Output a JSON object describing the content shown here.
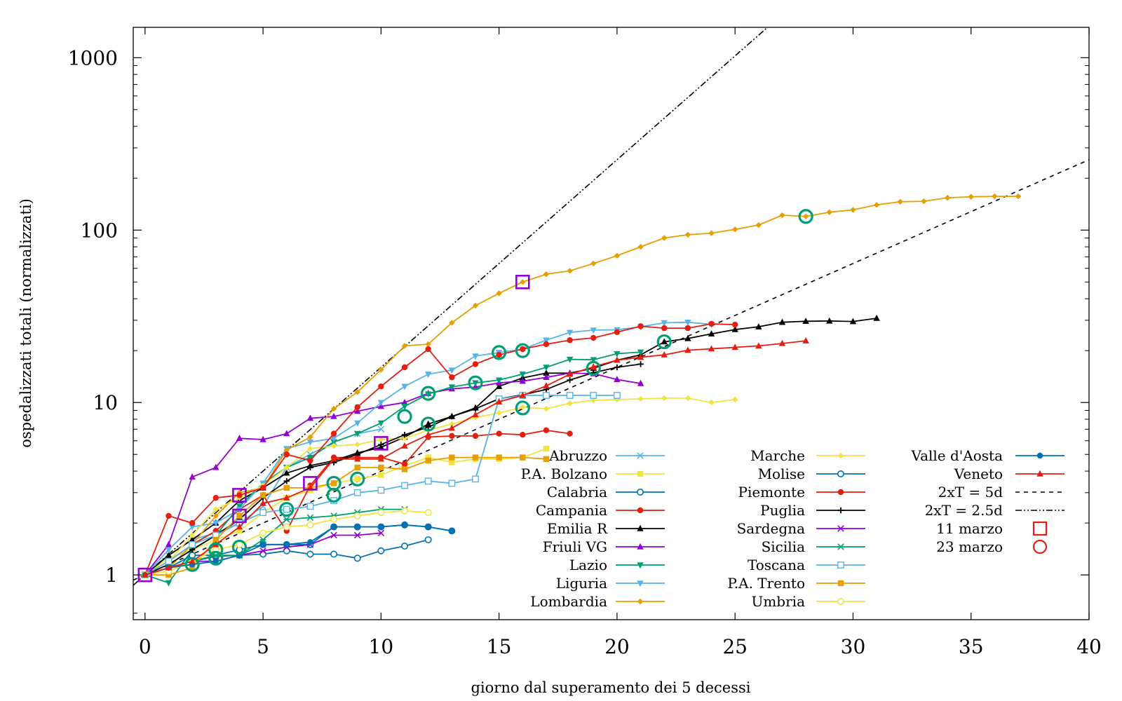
{
  "chart_data": {
    "type": "line",
    "title": "",
    "xlabel": "giorno dal superamento dei 5 decessi",
    "ylabel": "ospedalizzati totali (normalizzati)",
    "xlim": [
      -0.5,
      40
    ],
    "ylim": [
      0.55,
      1500
    ],
    "yscale": "log",
    "x_ticks": [
      "0",
      "5",
      "10",
      "15",
      "20",
      "25",
      "30",
      "35",
      "40"
    ],
    "y_ticks": [
      "1",
      "10",
      "100",
      "1000"
    ],
    "grid": false,
    "legend_position": "bottom-right",
    "series": [
      {
        "name": "Abruzzo",
        "color": "#56b4e9",
        "marker": "x",
        "x": [
          0,
          1,
          2,
          3,
          4,
          5,
          6,
          7,
          8,
          9,
          10
        ],
        "y": [
          1,
          1.3,
          1.6,
          1.75,
          2.0,
          2.5,
          4.2,
          5.0,
          5.9,
          6.6,
          7.0
        ]
      },
      {
        "name": "P.A. Bolzano",
        "color": "#f0e442",
        "marker": "square",
        "x": [
          0,
          1,
          2,
          3,
          4,
          5,
          6,
          7,
          8,
          9,
          10,
          11,
          12,
          13,
          14,
          15,
          16,
          17
        ],
        "y": [
          1,
          1.25,
          1.4,
          1.6,
          1.8,
          2.3,
          2.8,
          3.1,
          3.4,
          3.6,
          3.8,
          4.3,
          4.8,
          4.5,
          4.7,
          4.7,
          4.8,
          5.4
        ]
      },
      {
        "name": "Calabria",
        "color": "#0072b2",
        "marker": "circle-open",
        "x": [
          0,
          1,
          2,
          3,
          4,
          5,
          6,
          7,
          8,
          9,
          10,
          11,
          12
        ],
        "y": [
          1,
          1.1,
          1.2,
          1.28,
          1.3,
          1.32,
          1.38,
          1.32,
          1.32,
          1.25,
          1.38,
          1.47,
          1.6
        ]
      },
      {
        "name": "Campania",
        "color": "#e51e10",
        "marker": "circle",
        "x": [
          0,
          1,
          2,
          3,
          4,
          5,
          6,
          7,
          8,
          9,
          10,
          11,
          12,
          13,
          14,
          15,
          16,
          17,
          18
        ],
        "y": [
          1,
          1.2,
          1.5,
          1.8,
          2.4,
          2.9,
          1.8,
          3.3,
          4.8,
          4.8,
          4.8,
          4.4,
          6.3,
          6.4,
          6.4,
          6.6,
          6.5,
          6.9,
          6.6
        ]
      },
      {
        "name": "Emilia R",
        "color": "#000000",
        "marker": "triangle",
        "x": [
          0,
          1,
          2,
          3,
          4,
          5,
          6,
          7,
          8,
          9,
          10,
          11,
          12,
          13,
          14,
          15,
          16,
          17,
          18,
          19,
          20,
          21,
          22,
          23,
          24,
          25,
          26,
          27,
          28,
          29,
          30,
          31
        ],
        "y": [
          1,
          1.3,
          1.6,
          2.0,
          2.7,
          3.2,
          3.9,
          4.3,
          4.6,
          5.1,
          5.5,
          6.3,
          7.5,
          8.3,
          9.3,
          12.4,
          13.9,
          14.8,
          14.8,
          15.8,
          17.6,
          18.9,
          22.5,
          23.5,
          25,
          26.5,
          27.5,
          29.2,
          29.6,
          29.7,
          29.5,
          30.8
        ]
      },
      {
        "name": "Friuli VG",
        "color": "#9400d3",
        "marker": "triangle",
        "x": [
          0,
          1,
          2,
          3,
          4,
          5,
          6,
          7,
          8,
          9,
          10,
          11,
          12,
          13,
          14,
          15,
          16,
          17,
          18,
          19,
          20,
          21
        ],
        "y": [
          1,
          1.5,
          3.7,
          4.2,
          6.2,
          6.1,
          6.6,
          8.1,
          8.3,
          8.9,
          9.5,
          10,
          11.3,
          12,
          12.3,
          13,
          13.3,
          14,
          14.8,
          14.7,
          13.6,
          12.9
        ]
      },
      {
        "name": "Lazio",
        "color": "#009e73",
        "marker": "triangle-down",
        "x": [
          0,
          1,
          2,
          3,
          4,
          5,
          6,
          7,
          8,
          9,
          10,
          11,
          12,
          13,
          14,
          15,
          16,
          17,
          18,
          19,
          20,
          21
        ],
        "y": [
          1,
          0.9,
          1.4,
          1.7,
          2.5,
          3.4,
          4.2,
          4.8,
          5.9,
          6.6,
          7.6,
          9.5,
          11.2,
          12.3,
          13,
          13.5,
          14.6,
          16,
          17.8,
          17.7,
          19.2,
          19.6
        ]
      },
      {
        "name": "Liguria",
        "color": "#56b4e9",
        "marker": "triangle-down",
        "x": [
          0,
          1,
          2,
          3,
          4,
          5,
          6,
          7,
          8,
          9,
          10,
          11,
          12,
          13,
          14,
          15,
          16,
          17,
          18,
          19,
          20,
          21,
          22,
          23,
          24
        ],
        "y": [
          1,
          1.4,
          1.9,
          2.0,
          2.4,
          3.4,
          5.4,
          5.9,
          6.2,
          7.6,
          10,
          12.4,
          14.6,
          15.4,
          18.6,
          19.5,
          20.4,
          23,
          25.5,
          26.3,
          26.4,
          27.5,
          29,
          29.2,
          28.4
        ]
      },
      {
        "name": "Lombardia",
        "color": "#e69f00",
        "marker": "diamond",
        "x": [
          0,
          1,
          2,
          3,
          4,
          5,
          6,
          7,
          8,
          9,
          10,
          11,
          12,
          13,
          14,
          15,
          16,
          17,
          18,
          19,
          20,
          21,
          22,
          23,
          24,
          25,
          26,
          27,
          28,
          29,
          30,
          31,
          32,
          33,
          34,
          35,
          36,
          37
        ],
        "y": [
          1,
          1.1,
          1.5,
          2.2,
          3.0,
          3.2,
          5.3,
          6.3,
          9.2,
          11.5,
          15.5,
          21.3,
          21.8,
          29,
          36.5,
          43,
          50,
          55.5,
          58,
          64,
          71,
          80,
          90,
          94,
          96,
          101,
          107,
          122,
          120,
          127,
          131,
          140,
          146,
          147,
          154,
          156,
          157,
          157
        ]
      },
      {
        "name": "Marche",
        "color": "#f0e442",
        "marker": "diamond",
        "x": [
          0,
          1,
          2,
          3,
          4,
          5,
          6,
          7,
          8,
          9,
          10,
          11,
          12,
          13,
          14,
          15,
          16,
          17,
          18,
          19,
          20,
          21,
          22,
          23,
          24,
          25
        ],
        "y": [
          1,
          1.2,
          1.7,
          2.4,
          2.8,
          3.3,
          4.2,
          5.4,
          5.6,
          5.7,
          6.1,
          6.2,
          6.9,
          7.5,
          8.2,
          8.7,
          9.4,
          9.2,
          9.9,
          10.3,
          10.4,
          10.5,
          10.6,
          10.6,
          10,
          10.4
        ]
      },
      {
        "name": "Molise",
        "color": "#0072b2",
        "marker": "circle-open",
        "x": [
          0,
          1,
          2,
          3,
          4,
          5,
          6,
          7,
          8,
          9,
          10,
          11,
          12,
          13
        ],
        "y": [
          1,
          1.1,
          1.3,
          1.3,
          1.4,
          1.5,
          1.5,
          1.5,
          1.9,
          1.9,
          1.9,
          1.95,
          1.9,
          1.8
        ]
      },
      {
        "name": "Piemonte",
        "color": "#e51e10",
        "marker": "circle",
        "x": [
          0,
          1,
          2,
          3,
          4,
          5,
          6,
          7,
          8,
          9,
          10,
          11,
          12,
          13,
          14,
          15,
          16,
          17,
          18,
          19,
          20,
          21,
          22,
          23,
          24,
          25
        ],
        "y": [
          1,
          2.2,
          2.0,
          2.8,
          2.9,
          3.2,
          5.0,
          4.6,
          6.6,
          9.4,
          12.4,
          16,
          20.4,
          14,
          16.7,
          18.9,
          20.4,
          21.8,
          23,
          23.7,
          25.6,
          27.7,
          27,
          27,
          28.6,
          28.3
        ]
      },
      {
        "name": "Puglia",
        "color": "#000000",
        "marker": "plus",
        "x": [
          0,
          1,
          2,
          3,
          4,
          5,
          6,
          7,
          8,
          9,
          10,
          11,
          12,
          13,
          14,
          15,
          16,
          17,
          18,
          19,
          20,
          21
        ],
        "y": [
          1,
          1.15,
          1.4,
          1.7,
          2.1,
          2.8,
          3.5,
          4.2,
          4.5,
          5.0,
          5.7,
          6.5,
          7.2,
          8.3,
          9.2,
          10.5,
          11.1,
          11.9,
          13.5,
          14.9,
          16,
          16.7
        ]
      },
      {
        "name": "Sardegna",
        "color": "#9400d3",
        "marker": "x",
        "x": [
          0,
          1,
          2,
          3,
          4,
          5,
          6,
          7,
          8,
          9,
          10
        ],
        "y": [
          1,
          1.1,
          1.2,
          1.2,
          1.3,
          1.38,
          1.45,
          1.5,
          1.7,
          1.7,
          1.75
        ]
      },
      {
        "name": "Sicilia",
        "color": "#009e73",
        "marker": "star",
        "x": [
          0,
          1,
          2,
          3,
          4,
          5,
          6,
          7,
          8,
          9,
          10,
          11
        ],
        "y": [
          1,
          1.1,
          1.2,
          1.3,
          1.3,
          1.6,
          2.1,
          2.15,
          2.2,
          2.3,
          2.4,
          2.4
        ]
      },
      {
        "name": "Toscana",
        "color": "#56b4e9",
        "marker": "square-open",
        "x": [
          0,
          1,
          2,
          3,
          4,
          5,
          6,
          7,
          8,
          9,
          10,
          11,
          12,
          13,
          14,
          15,
          16,
          17,
          18,
          19,
          20
        ],
        "y": [
          1,
          1.2,
          1.5,
          1.7,
          2.0,
          2.3,
          2.4,
          2.5,
          2.7,
          3.0,
          3.1,
          3.3,
          3.5,
          3.4,
          3.6,
          10.5,
          11,
          11,
          11,
          11,
          11
        ]
      },
      {
        "name": "P.A. Trento",
        "color": "#e69f00",
        "marker": "square",
        "x": [
          0,
          1,
          2,
          3,
          4,
          5,
          6,
          7,
          8,
          9,
          10,
          11,
          12,
          13,
          14,
          15,
          16,
          17
        ],
        "y": [
          1,
          1.0,
          1.1,
          1.6,
          2.2,
          2.9,
          3.2,
          3.2,
          3.4,
          4.2,
          4.2,
          4.1,
          4.6,
          4.8,
          4.8,
          4.8,
          4.8,
          4.7
        ]
      },
      {
        "name": "Umbria",
        "color": "#f0e442",
        "marker": "circle-open",
        "x": [
          0,
          1,
          2,
          3,
          4,
          5,
          6,
          7,
          8,
          9,
          10,
          11,
          12
        ],
        "y": [
          1,
          1.05,
          1.2,
          1.4,
          1.5,
          1.75,
          1.9,
          1.95,
          2.1,
          2.2,
          2.3,
          2.35,
          2.3
        ]
      },
      {
        "name": "Valle d'Aosta",
        "color": "#0072b2",
        "marker": "circle",
        "x": [
          0,
          1,
          2,
          3,
          4,
          5,
          6,
          7,
          8,
          9,
          10,
          11,
          12,
          13
        ],
        "y": [
          1,
          1.1,
          1.15,
          1.2,
          1.3,
          1.5,
          1.5,
          1.55,
          1.9,
          1.9,
          1.9,
          1.95,
          1.9,
          1.8
        ]
      },
      {
        "name": "Veneto",
        "color": "#e51e10",
        "marker": "triangle",
        "x": [
          0,
          1,
          2,
          3,
          4,
          5,
          6,
          7,
          8,
          9,
          10,
          11,
          12,
          13,
          14,
          15,
          16,
          17,
          18,
          19,
          20,
          21,
          22,
          23,
          24,
          25,
          26,
          27,
          28
        ],
        "y": [
          1,
          1.1,
          1.2,
          1.5,
          1.9,
          2.6,
          2.8,
          3.2,
          4.7,
          4.7,
          4.7,
          5.6,
          6.5,
          7.1,
          8.5,
          10.1,
          11,
          12.5,
          14.6,
          16.1,
          17.6,
          18.3,
          18.9,
          20.1,
          20.5,
          20.9,
          21.3,
          22,
          22.8
        ]
      }
    ],
    "reference_lines": [
      {
        "name": "2xT = 5d",
        "style": "dashed",
        "doubling_days": 5
      },
      {
        "name": "2xT = 2.5d",
        "style": "dash-dot-dot",
        "doubling_days": 2.5
      }
    ],
    "markers": [
      {
        "name": "11 marzo",
        "shape": "square-open",
        "legend_color": "#e51e10",
        "points": [
          {
            "x": 0,
            "y": 1,
            "color": "#9400d3"
          },
          {
            "x": 4,
            "y": 2.9,
            "color": "#9400d3"
          },
          {
            "x": 4,
            "y": 2.2,
            "color": "#9400d3"
          },
          {
            "x": 7,
            "y": 3.4,
            "color": "#9400d3"
          },
          {
            "x": 10,
            "y": 5.8,
            "color": "#9400d3"
          },
          {
            "x": 16,
            "y": 50,
            "color": "#9400d3"
          }
        ]
      },
      {
        "name": "23 marzo",
        "shape": "circle-open",
        "legend_color": "#e51e10",
        "points": [
          {
            "x": 2,
            "y": 1.15,
            "color": "#009e73"
          },
          {
            "x": 3,
            "y": 1.25,
            "color": "#009e73"
          },
          {
            "x": 3,
            "y": 1.4,
            "color": "#009e73"
          },
          {
            "x": 4,
            "y": 1.45,
            "color": "#009e73"
          },
          {
            "x": 6,
            "y": 2.4,
            "color": "#009e73"
          },
          {
            "x": 8,
            "y": 2.9,
            "color": "#009e73"
          },
          {
            "x": 8,
            "y": 3.4,
            "color": "#009e73"
          },
          {
            "x": 9,
            "y": 3.6,
            "color": "#009e73"
          },
          {
            "x": 11,
            "y": 8.3,
            "color": "#009e73"
          },
          {
            "x": 12,
            "y": 7.5,
            "color": "#009e73"
          },
          {
            "x": 12,
            "y": 11.3,
            "color": "#009e73"
          },
          {
            "x": 14,
            "y": 13,
            "color": "#009e73"
          },
          {
            "x": 15,
            "y": 19.5,
            "color": "#009e73"
          },
          {
            "x": 16,
            "y": 20,
            "color": "#009e73"
          },
          {
            "x": 16,
            "y": 9.3,
            "color": "#009e73"
          },
          {
            "x": 19,
            "y": 15.8,
            "color": "#009e73"
          },
          {
            "x": 22,
            "y": 22.5,
            "color": "#009e73"
          },
          {
            "x": 28,
            "y": 120,
            "color": "#009e73"
          }
        ]
      }
    ]
  }
}
